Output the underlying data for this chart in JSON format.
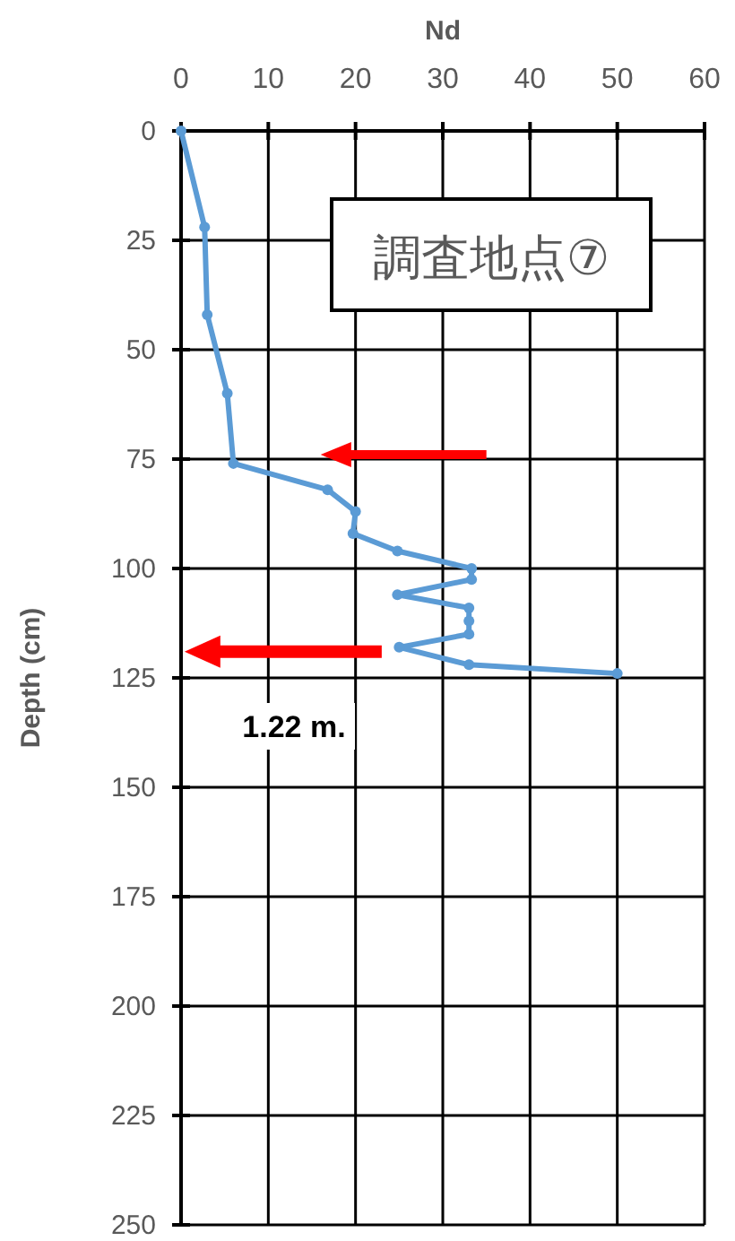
{
  "chart_data": {
    "type": "line",
    "xlabel": "Nd",
    "ylabel": "Depth (cm)",
    "x": [
      0,
      2.7,
      3,
      5.3,
      6,
      16.8,
      20,
      19.7,
      24.8,
      33.3,
      33.3,
      24.8,
      33,
      33,
      33,
      25,
      33,
      50
    ],
    "series": [
      {
        "color": "#5b9bd5",
        "values": [
          0,
          22,
          42,
          60,
          76,
          82,
          87,
          92,
          96,
          100,
          102.5,
          106,
          109,
          112,
          115,
          118,
          122,
          124
        ]
      }
    ],
    "xlim": [
      0,
      60
    ],
    "xticks": [
      0,
      10,
      20,
      30,
      40,
      50,
      60
    ],
    "ylim": [
      250,
      0
    ],
    "yticks": [
      0,
      25,
      50,
      75,
      100,
      125,
      150,
      175,
      200,
      225,
      250
    ],
    "grid": true,
    "marker": "circle",
    "line_style": "solid",
    "annotations": [
      "調査地点⑦",
      "1.22 m."
    ]
  }
}
